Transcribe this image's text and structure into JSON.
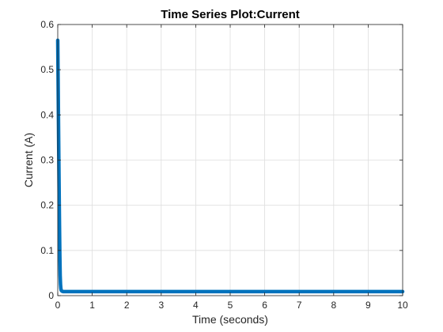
{
  "chart_data": {
    "type": "line",
    "title": "Time Series Plot:Current",
    "xlabel": "Time (seconds)",
    "ylabel": "Current (A)",
    "xlim": [
      0,
      10
    ],
    "ylim": [
      0,
      0.6
    ],
    "xticks": [
      "0",
      "1",
      "2",
      "3",
      "4",
      "5",
      "6",
      "7",
      "8",
      "9",
      "10"
    ],
    "yticks": [
      "0",
      "0.1",
      "0.2",
      "0.3",
      "0.4",
      "0.5",
      "0.6"
    ],
    "grid": true,
    "line_color": "#0072bd",
    "series": [
      {
        "x": [
          0,
          0.01,
          0.02,
          0.03,
          0.04,
          0.05,
          0.06,
          0.07,
          0.08,
          0.09,
          0.1,
          0.12,
          0.15,
          0.2,
          0.3,
          0.5,
          1,
          2,
          3,
          4,
          5,
          6,
          7,
          8,
          9,
          10
        ],
        "y": [
          0.565,
          0.48,
          0.395,
          0.31,
          0.23,
          0.155,
          0.09,
          0.045,
          0.025,
          0.016,
          0.012,
          0.01,
          0.009,
          0.009,
          0.009,
          0.009,
          0.009,
          0.009,
          0.009,
          0.009,
          0.009,
          0.009,
          0.009,
          0.009,
          0.009,
          0.009
        ]
      }
    ]
  }
}
